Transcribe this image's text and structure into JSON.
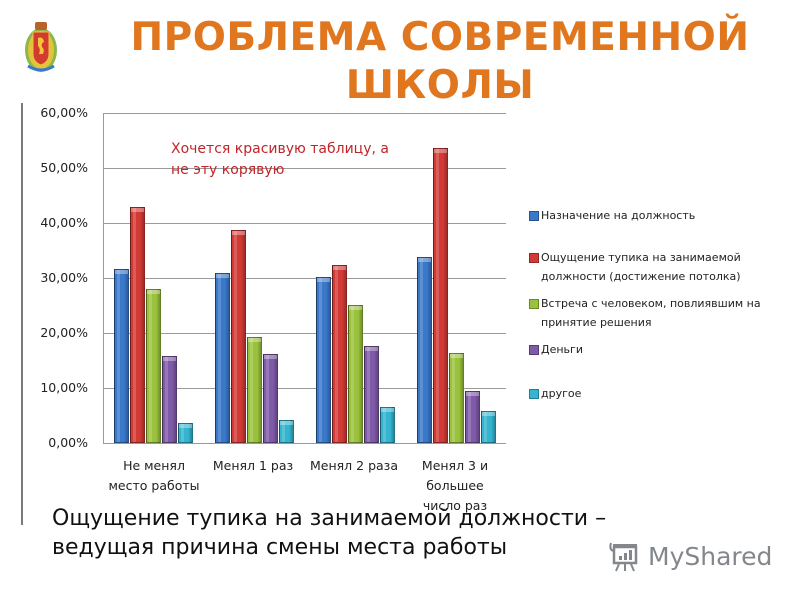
{
  "header": {
    "title_line1": "ПРОБЛЕМА СОВРЕМЕННОЙ",
    "title_line2": "ШКОЛЫ",
    "title_color": "#e0761e",
    "emblem": "krasnoyarsk-coat-of-arms-icon"
  },
  "annotation": {
    "line1": "Хочется красивую таблицу, а",
    "line2": "не эту корявую",
    "color": "#c0252a"
  },
  "caption": {
    "line1": "Ощущение тупика на занимаемой должности –",
    "line2": "ведущая причина смены места работы"
  },
  "watermark": {
    "icon": "presentation-board-icon",
    "text": "MyShared"
  },
  "chart_data": {
    "type": "bar",
    "title": "",
    "xlabel": "",
    "ylabel": "",
    "ylim": [
      0,
      60
    ],
    "yticks": [
      "0,00%",
      "10,00%",
      "20,00%",
      "30,00%",
      "40,00%",
      "50,00%",
      "60,00%"
    ],
    "grid": true,
    "legend_position": "right",
    "categories": [
      "Не меняял место работы",
      "Менял 1 раз",
      "Менял 2 раза",
      "Менял 3 и большее число раз"
    ],
    "category_labels": [
      [
        "Не менял",
        "место работы"
      ],
      [
        "Менял 1 раз"
      ],
      [
        "Менял 2 раза"
      ],
      [
        "Менял 3 и",
        "большее",
        "число раз"
      ]
    ],
    "series": [
      {
        "name": "Назначение на должность",
        "color": "#3a78c9",
        "values": [
          31.6,
          31.0,
          30.2,
          33.8
        ]
      },
      {
        "name": "Ощущение тупика на занимаемой должности (достижение потолка)",
        "color": "#d23a35",
        "values": [
          42.9,
          38.7,
          32.4,
          53.6
        ]
      },
      {
        "name": "Встреча с человеком, повлиявшим на принятие решения",
        "color": "#9ac23c",
        "values": [
          28.0,
          19.3,
          25.1,
          16.4
        ]
      },
      {
        "name": "Деньги",
        "color": "#7f5aa8",
        "values": [
          15.8,
          16.2,
          17.6,
          9.4
        ]
      },
      {
        "name": "другое",
        "color": "#34b4cf",
        "values": [
          3.6,
          4.2,
          6.6,
          5.8
        ]
      }
    ]
  },
  "legend": {
    "items": [
      {
        "line1": "Назначение на должность",
        "line2": ""
      },
      {
        "line1": "Ощущение тупика на занимаемой",
        "line2": "должности (достижение потолка)"
      },
      {
        "line1": "Встреча с человеком, повлиявшим на",
        "line2": "принятие решения"
      },
      {
        "line1": "Деньги",
        "line2": ""
      },
      {
        "line1": "другое",
        "line2": ""
      }
    ]
  }
}
